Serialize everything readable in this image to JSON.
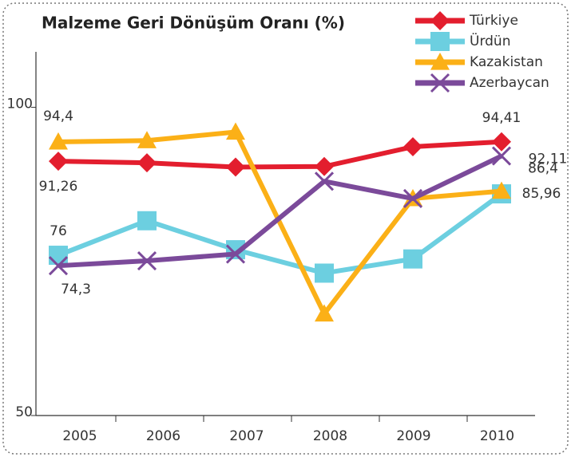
{
  "chart_data": {
    "type": "line",
    "title": "Malzeme Geri Dönüşüm Oranı (%)",
    "categories": [
      "2005",
      "2006",
      "2007",
      "2008",
      "2009",
      "2010"
    ],
    "series": [
      {
        "name": "Türkiye",
        "color": "#e31e2e",
        "marker": "diamond",
        "values": [
          91.26,
          91.0,
          90.3,
          90.4,
          93.6,
          94.41
        ],
        "value_labels": [
          "91,26",
          null,
          null,
          null,
          null,
          "94,41"
        ]
      },
      {
        "name": "Ürdün",
        "color": "#6ccfe0",
        "marker": "square",
        "values": [
          76,
          81.6,
          76.9,
          73.1,
          75.4,
          85.96
        ],
        "value_labels": [
          "76",
          null,
          null,
          null,
          null,
          "85,96"
        ]
      },
      {
        "name": "Kazakistan",
        "color": "#fbb017",
        "marker": "triangle",
        "values": [
          94.4,
          94.6,
          96.0,
          66.5,
          85.2,
          86.4
        ],
        "value_labels": [
          "94,4",
          null,
          null,
          null,
          null,
          "86,4"
        ]
      },
      {
        "name": "Azerbaycan",
        "color": "#7b4a9a",
        "marker": "x",
        "values": [
          74.3,
          75.1,
          76.2,
          88.0,
          85.2,
          92.11
        ],
        "value_labels": [
          "74,3",
          null,
          null,
          null,
          null,
          "92,11"
        ]
      }
    ],
    "ylim": [
      50,
      109
    ],
    "yticks": [
      50,
      100
    ],
    "grid": false,
    "legend": "top-right"
  }
}
